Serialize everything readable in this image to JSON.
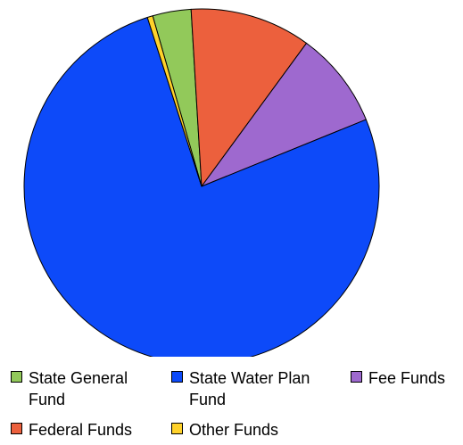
{
  "chart_data": {
    "type": "pie",
    "title": "",
    "categories": [
      "State General Fund",
      "Federal Funds",
      "Fee Funds",
      "State Water Plan Fund",
      "Other Funds"
    ],
    "values": [
      3.5,
      11.0,
      8.8,
      76.2,
      0.5
    ],
    "colors": [
      "#92c95a",
      "#ec603d",
      "#9e69cf",
      "#0d4af9",
      "#ffd22b"
    ],
    "start_angle_deg": -16,
    "direction": "clockwise",
    "legend_position": "bottom",
    "legend": [
      {
        "label": "State General Fund",
        "color": "#92c95a"
      },
      {
        "label": "State Water Plan Fund",
        "color": "#0d4af9"
      },
      {
        "label": "Fee Funds",
        "color": "#9e69cf"
      },
      {
        "label": "Federal Funds",
        "color": "#ec603d"
      },
      {
        "label": "Other Funds",
        "color": "#ffd22b"
      }
    ]
  }
}
